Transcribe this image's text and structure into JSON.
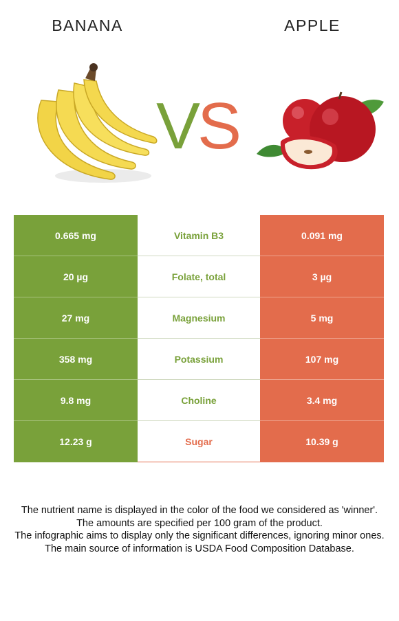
{
  "header": {
    "left_food": "BANANA",
    "right_food": "APPLE",
    "vs_v": "V",
    "vs_s": "S"
  },
  "colors": {
    "left_winner": "#79a13a",
    "right_winner": "#e36c4c"
  },
  "rows": [
    {
      "left": "0.665 mg",
      "nutrient": "Vitamin B3",
      "right": "0.091 mg",
      "winner": "left"
    },
    {
      "left": "20 µg",
      "nutrient": "Folate, total",
      "right": "3 µg",
      "winner": "left"
    },
    {
      "left": "27 mg",
      "nutrient": "Magnesium",
      "right": "5 mg",
      "winner": "left"
    },
    {
      "left": "358 mg",
      "nutrient": "Potassium",
      "right": "107 mg",
      "winner": "left"
    },
    {
      "left": "9.8 mg",
      "nutrient": "Choline",
      "right": "3.4 mg",
      "winner": "left"
    },
    {
      "left": "12.23 g",
      "nutrient": "Sugar",
      "right": "10.39 g",
      "winner": "right"
    }
  ],
  "footnote": [
    "The nutrient name is displayed in the color of the food we considered as 'winner'.",
    "The amounts are specified per 100 gram of the product.",
    "The infographic aims to display only the significant differences, ignoring minor ones.",
    "The main source of information is USDA Food Composition Database."
  ]
}
